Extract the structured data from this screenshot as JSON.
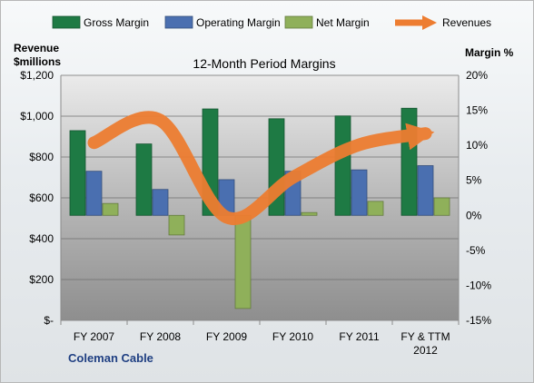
{
  "chart_data": {
    "type": "bar",
    "title": "12-Month Period Margins",
    "company": "Coleman Cable",
    "left_axis": {
      "label_line1": "Revenue",
      "label_line2": "$millions",
      "ylim": [
        0,
        1200
      ],
      "ticks": [
        0,
        200,
        400,
        600,
        800,
        1000,
        1200
      ],
      "tick_labels": [
        "$-",
        "$200",
        "$400",
        "$600",
        "$800",
        "$1,000",
        "$1,200"
      ]
    },
    "right_axis": {
      "label": "Margin %",
      "ylim": [
        -15,
        20
      ],
      "ticks": [
        -15,
        -10,
        -5,
        0,
        5,
        10,
        15,
        20
      ],
      "tick_labels": [
        "-15%",
        "-10%",
        "-5%",
        "0%",
        "5%",
        "10%",
        "15%",
        "20%"
      ]
    },
    "categories": [
      [
        "FY 2007"
      ],
      [
        "FY 2008"
      ],
      [
        "FY 2009"
      ],
      [
        "FY 2010"
      ],
      [
        "FY 2011"
      ],
      [
        "FY & TTM",
        "2012"
      ]
    ],
    "series": [
      {
        "name": "Gross Margin",
        "axis": "right",
        "color": "#1e7a44",
        "values": [
          12.1,
          10.2,
          15.2,
          13.8,
          14.2,
          15.3
        ]
      },
      {
        "name": "Operating Margin",
        "axis": "right",
        "color": "#4a6fb0",
        "values": [
          6.3,
          3.7,
          5.1,
          6.3,
          6.5,
          7.1
        ]
      },
      {
        "name": "Net Margin",
        "axis": "right",
        "color": "#8fb05a",
        "values": [
          1.7,
          -2.8,
          -13.3,
          0.4,
          2.0,
          2.5
        ]
      },
      {
        "name": "Revenues",
        "axis": "left",
        "type": "line",
        "color": "#ed7d31",
        "values": [
          870,
          980,
          505,
          700,
          860,
          915
        ]
      }
    ],
    "legend_position": "top",
    "grid": true
  }
}
